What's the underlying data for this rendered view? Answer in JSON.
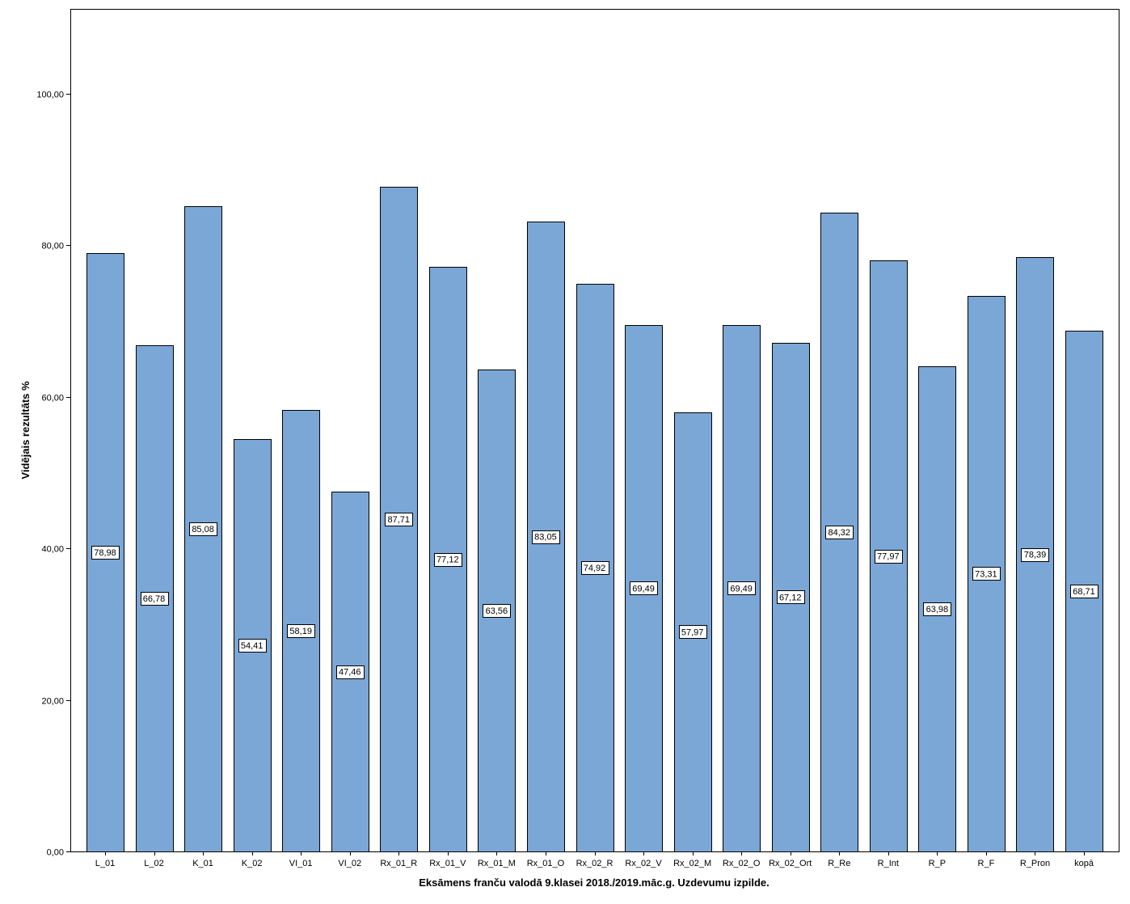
{
  "chart_data": {
    "type": "bar",
    "categories": [
      "L_01",
      "L_02",
      "K_01",
      "K_02",
      "VI_01",
      "VI_02",
      "Rx_01_R",
      "Rx_01_V",
      "Rx_01_M",
      "Rx_01_O",
      "Rx_02_R",
      "Rx_02_V",
      "Rx_02_M",
      "Rx_02_O",
      "Rx_02_Ort",
      "R_Re",
      "R_Int",
      "R_P",
      "R_F",
      "R_Pron",
      "kopā"
    ],
    "values": [
      78.98,
      66.78,
      85.08,
      54.41,
      58.19,
      47.46,
      87.71,
      77.12,
      63.56,
      83.05,
      74.92,
      69.49,
      57.97,
      69.49,
      67.12,
      84.32,
      77.97,
      63.98,
      73.31,
      78.39,
      68.71
    ],
    "data_labels": [
      "78,98",
      "66,78",
      "85,08",
      "54,41",
      "58,19",
      "47,46",
      "87,71",
      "77,12",
      "63,56",
      "83,05",
      "74,92",
      "69,49",
      "57,97",
      "69,49",
      "67,12",
      "84,32",
      "77,97",
      "63,98",
      "73,31",
      "78,39",
      "68,71"
    ],
    "xlabel": "Eksāmens franču valodā 9.klasei 2018./2019.māc.g. Uzdevumu izpilde.",
    "ylabel": "Vidējais rezultāts %",
    "ylim": [
      0,
      111.15
    ],
    "yticks": [
      0,
      20,
      40,
      60,
      80,
      100
    ],
    "ytick_labels": [
      "0,00",
      "20,00",
      "40,00",
      "60,00",
      "80,00",
      "100,00"
    ],
    "grid": false,
    "legend": "none",
    "colors": {
      "bar_fill": "#7BA7D6",
      "bar_stroke": "#000000",
      "label_box_fill": "#FFFFFF"
    }
  }
}
